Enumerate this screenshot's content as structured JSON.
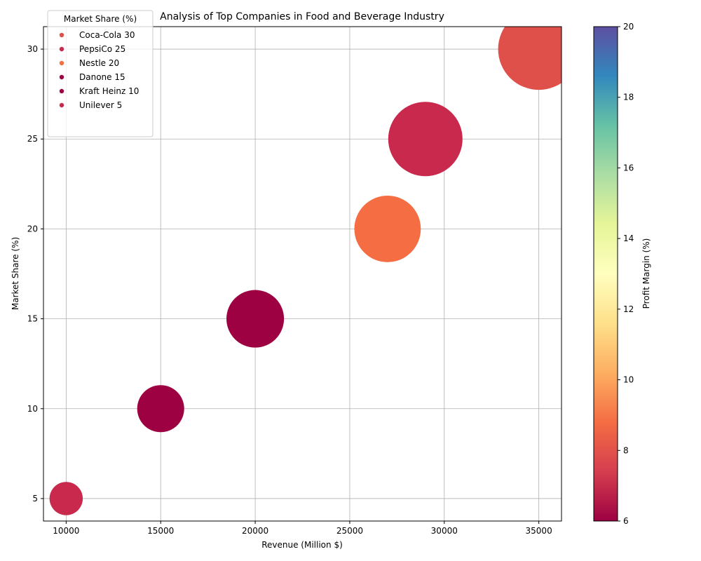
{
  "chart_data": {
    "type": "scatter",
    "title": "Analysis of Top Companies in Food and Beverage Industry",
    "xlabel": "Revenue (Million $)",
    "ylabel": "Market Share (%)",
    "xlim": [
      8800,
      36200
    ],
    "ylim": [
      3.75,
      31.25
    ],
    "x_ticks": [
      10000,
      15000,
      20000,
      25000,
      30000,
      35000
    ],
    "y_ticks": [
      5,
      10,
      15,
      20,
      25,
      30
    ],
    "grid": true,
    "legend": {
      "title": "Market Share (%)",
      "placement": "top-left"
    },
    "size_encodes": "market share",
    "colorbar": {
      "label": "Profit Margin (%)",
      "range": [
        6,
        20
      ],
      "ticks": [
        6,
        8,
        10,
        12,
        14,
        16,
        18,
        20
      ],
      "colormap": "Spectral"
    },
    "points": [
      {
        "label": "Coca-Cola 30",
        "company": "Coca-Cola",
        "revenue": 35000,
        "market_share": 30,
        "profit_margin": 8,
        "color": "#e0504a"
      },
      {
        "label": "PepsiCo 25",
        "company": "PepsiCo",
        "revenue": 29000,
        "market_share": 25,
        "profit_margin": 7,
        "color": "#c9294c"
      },
      {
        "label": "Nestle 20",
        "company": "Nestle",
        "revenue": 27000,
        "market_share": 20,
        "profit_margin": 9,
        "color": "#f46d43"
      },
      {
        "label": "Danone 15",
        "company": "Danone",
        "revenue": 20000,
        "market_share": 15,
        "profit_margin": 6,
        "color": "#9e0142"
      },
      {
        "label": "Kraft Heinz 10",
        "company": "Kraft Heinz",
        "revenue": 15000,
        "market_share": 10,
        "profit_margin": 6,
        "color": "#9e0142"
      },
      {
        "label": "Unilever 5",
        "company": "Unilever",
        "revenue": 10000,
        "market_share": 5,
        "profit_margin": 7,
        "color": "#c9294c"
      }
    ]
  }
}
